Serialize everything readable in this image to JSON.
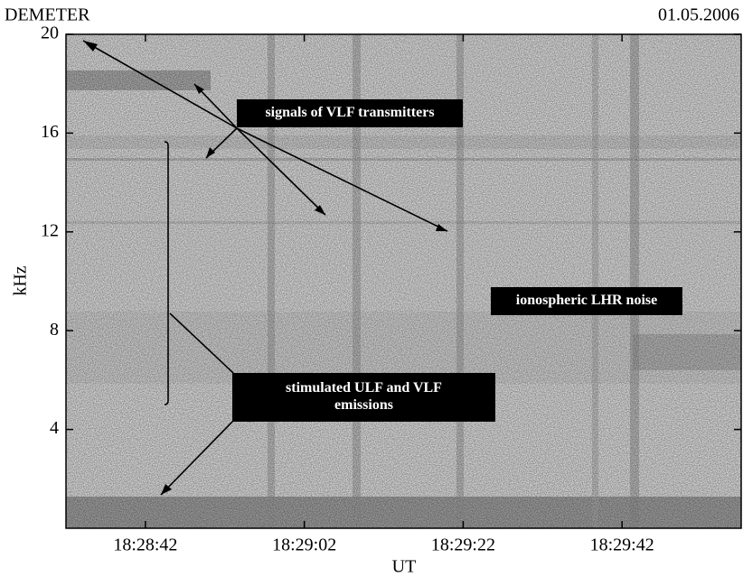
{
  "chart_data": {
    "type": "spectrogram",
    "title": "DEMETER",
    "subtitle": "01.05.2006",
    "ylabel": "kHz",
    "xlabel": "UT",
    "ylim": [
      0,
      20
    ],
    "yticks": [
      4,
      8,
      12,
      16,
      20
    ],
    "xlim": [
      "18:28:32",
      "18:29:57"
    ],
    "xticks": [
      "18:28:42",
      "18:29:02",
      "18:29:22",
      "18:29:42"
    ],
    "annotations": [
      {
        "lines": [
          "signals of VLF transmitters"
        ]
      },
      {
        "lines": [
          "ionospheric LHR noise"
        ]
      },
      {
        "lines": [
          "stimulated ULF and VLF",
          "emissions"
        ]
      }
    ]
  }
}
